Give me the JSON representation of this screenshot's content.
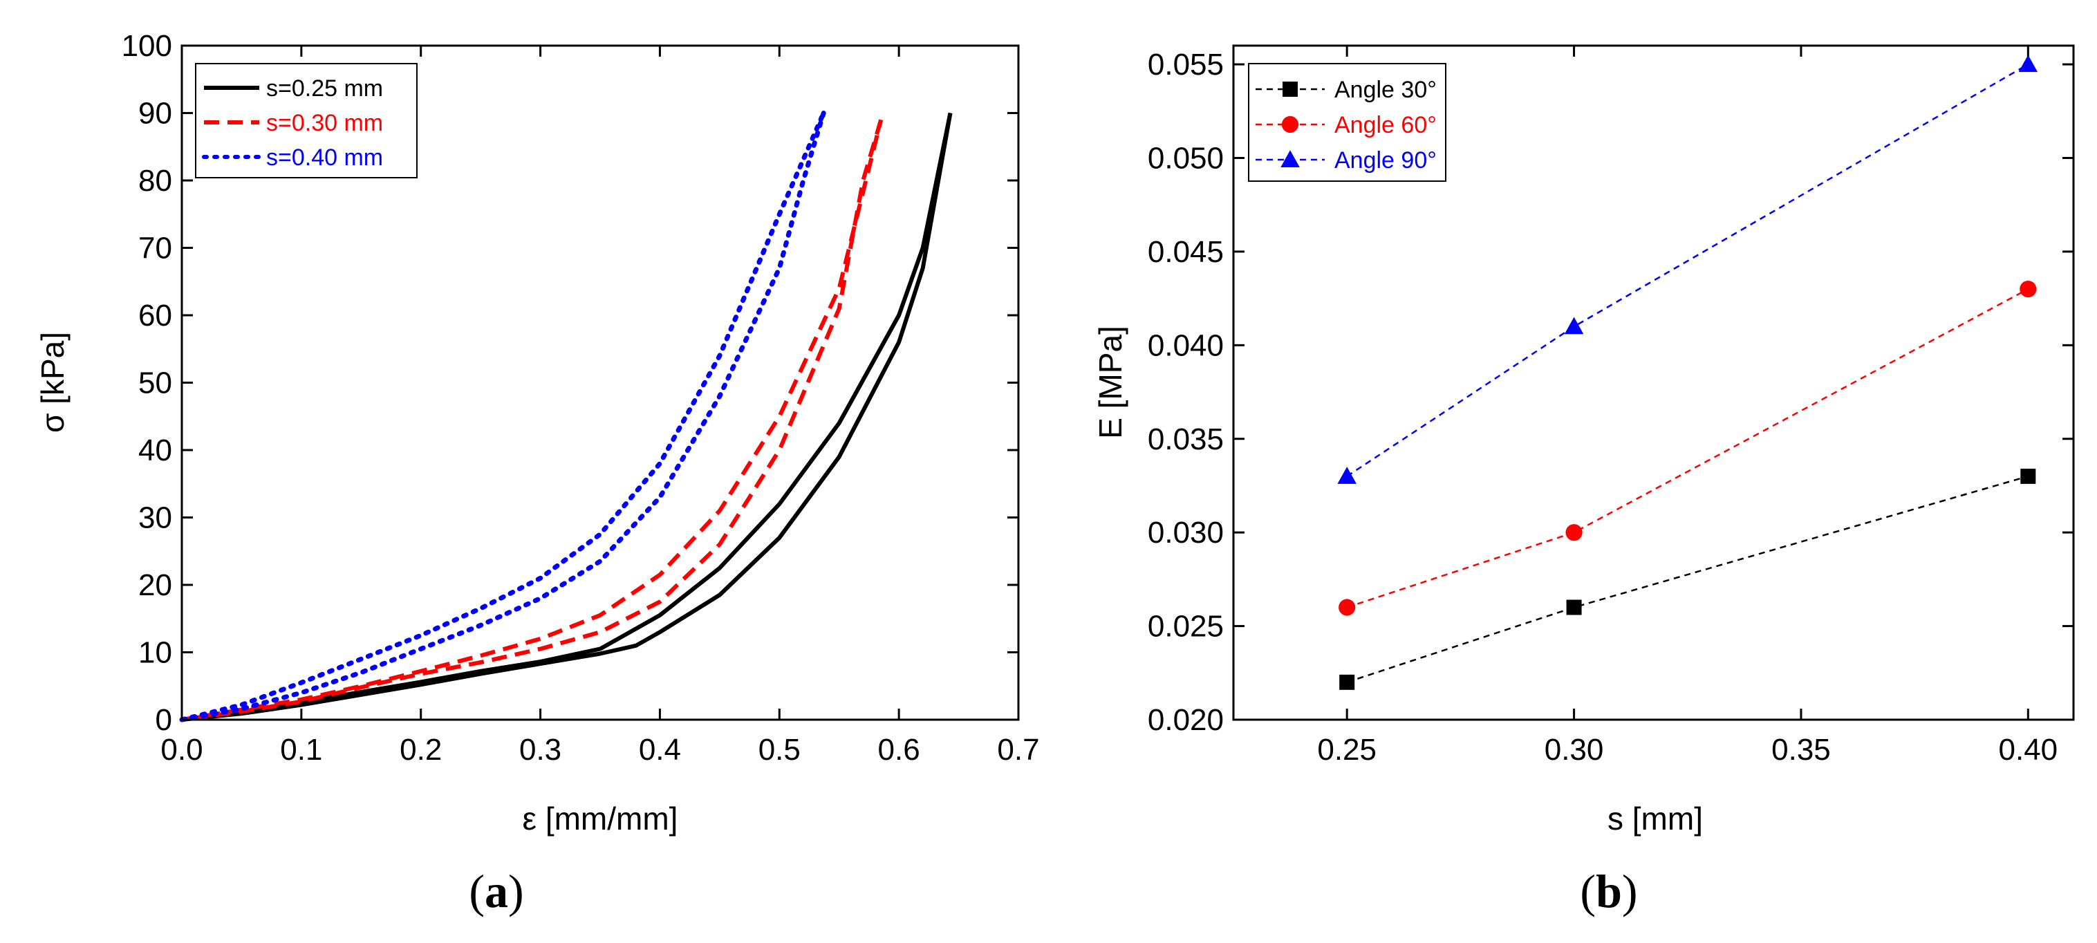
{
  "panels": {
    "a": {
      "label_open": "(",
      "letter": "a",
      "label_close": ")"
    },
    "b": {
      "label_open": "(",
      "letter": "b",
      "label_close": ")"
    }
  },
  "chart_data": [
    {
      "type": "line",
      "xlabel": "ε [mm/mm]",
      "ylabel": "σ [kPa]",
      "xlim": [
        0.0,
        0.7
      ],
      "ylim": [
        0,
        100
      ],
      "x_ticks": [
        "0.0",
        "0.1",
        "0.2",
        "0.3",
        "0.4",
        "0.5",
        "0.6",
        "0.7"
      ],
      "y_ticks": [
        "0",
        "10",
        "20",
        "30",
        "40",
        "50",
        "60",
        "70",
        "80",
        "90",
        "100"
      ],
      "grid": false,
      "legend_position": "top-left",
      "series": [
        {
          "name": "s=0.25 mm",
          "color": "#000000",
          "style": "solid",
          "loading": {
            "x": [
              0.0,
              0.05,
              0.1,
              0.15,
              0.2,
              0.25,
              0.3,
              0.35,
              0.4,
              0.45,
              0.5,
              0.55,
              0.6,
              0.62,
              0.643
            ],
            "y": [
              0,
              1.2,
              2.6,
              4.1,
              5.6,
              7.2,
              8.6,
              10.5,
              15.5,
              22.5,
              32.0,
              44.0,
              60.0,
              70.0,
              90.0
            ]
          },
          "unloading": {
            "x": [
              0.643,
              0.62,
              0.6,
              0.55,
              0.5,
              0.45,
              0.4,
              0.38,
              0.35,
              0.3,
              0.25,
              0.2,
              0.15,
              0.1,
              0.05,
              0.0
            ],
            "y": [
              90.0,
              67.0,
              56.0,
              39.0,
              27.0,
              18.5,
              13.0,
              11.0,
              9.8,
              8.3,
              6.8,
              5.2,
              3.7,
              2.2,
              0.9,
              0
            ]
          }
        },
        {
          "name": "s=0.30 mm",
          "color": "#ff0000",
          "style": "dashed",
          "loading": {
            "x": [
              0.0,
              0.05,
              0.1,
              0.15,
              0.2,
              0.25,
              0.3,
              0.35,
              0.4,
              0.45,
              0.5,
              0.55,
              0.585
            ],
            "y": [
              0,
              1.5,
              3.0,
              5.0,
              7.2,
              9.5,
              12.0,
              15.5,
              21.5,
              31.0,
              45.0,
              64.0,
              89.0
            ]
          },
          "unloading": {
            "x": [
              0.585,
              0.57,
              0.55,
              0.5,
              0.45,
              0.4,
              0.35,
              0.3,
              0.25,
              0.2,
              0.15,
              0.1,
              0.05,
              0.0
            ],
            "y": [
              89.0,
              80.0,
              61.0,
              40.0,
              26.0,
              17.5,
              13.0,
              10.5,
              8.5,
              6.8,
              4.8,
              2.7,
              1.2,
              0
            ]
          }
        },
        {
          "name": "s=0.40 mm",
          "color": "#0000ff",
          "style": "dotted",
          "loading": {
            "x": [
              0.0,
              0.05,
              0.1,
              0.15,
              0.2,
              0.25,
              0.3,
              0.35,
              0.4,
              0.45,
              0.5,
              0.537
            ],
            "y": [
              0,
              2.2,
              5.5,
              9.0,
              12.5,
              16.5,
              21.0,
              27.5,
              38.0,
              54.0,
              75.0,
              90.0
            ]
          },
          "unloading": {
            "x": [
              0.537,
              0.52,
              0.5,
              0.45,
              0.4,
              0.35,
              0.3,
              0.25,
              0.2,
              0.15,
              0.1,
              0.05,
              0.0
            ],
            "y": [
              90.0,
              80.0,
              67.0,
              48.0,
              33.0,
              23.5,
              18.0,
              14.0,
              10.5,
              7.0,
              4.0,
              1.6,
              0
            ]
          }
        }
      ]
    },
    {
      "type": "line",
      "xlabel": "s [mm]",
      "ylabel": "E [MPa]",
      "xlim": [
        0.225,
        0.41
      ],
      "ylim": [
        0.02,
        0.056
      ],
      "x_ticks": [
        "0.25",
        "0.30",
        "0.35",
        "0.40"
      ],
      "y_ticks": [
        "0.020",
        "0.025",
        "0.030",
        "0.035",
        "0.040",
        "0.045",
        "0.050",
        "0.055"
      ],
      "grid": false,
      "legend_position": "top-left",
      "x": [
        0.25,
        0.3,
        0.4
      ],
      "series": [
        {
          "name": "Angle 30°",
          "color": "#000000",
          "marker": "square",
          "values": [
            0.022,
            0.026,
            0.033
          ]
        },
        {
          "name": "Angle 60°",
          "color": "#ff0000",
          "marker": "circle",
          "values": [
            0.026,
            0.03,
            0.043
          ]
        },
        {
          "name": "Angle 90°",
          "color": "#0000ff",
          "marker": "triangle",
          "values": [
            0.033,
            0.041,
            0.055
          ]
        }
      ]
    }
  ]
}
